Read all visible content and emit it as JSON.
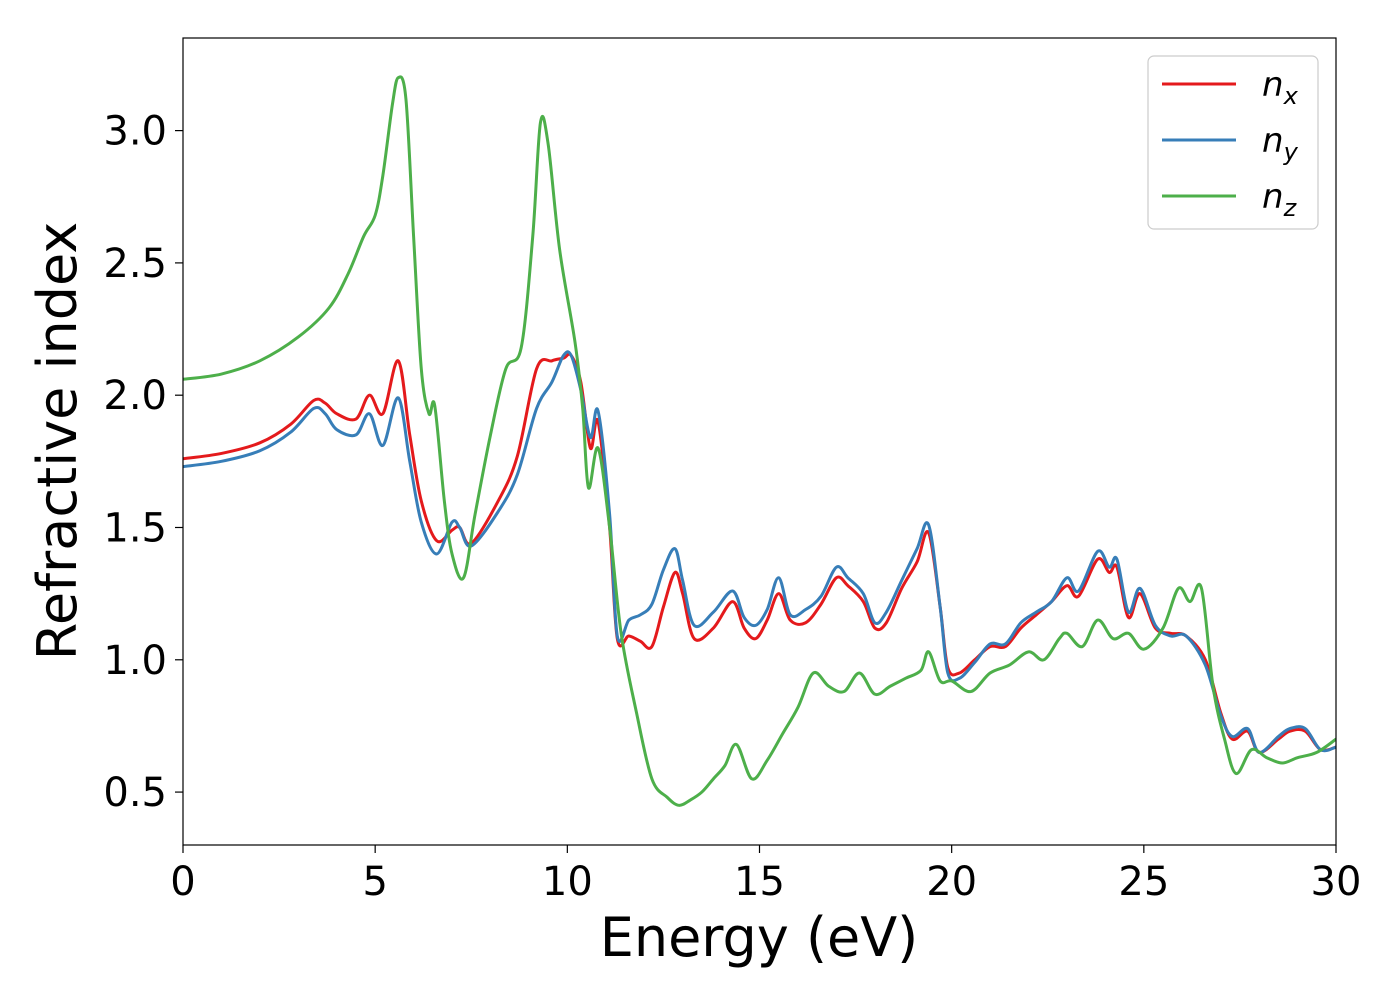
{
  "chart_data": {
    "type": "line",
    "title": "",
    "xlabel": "Energy (eV)",
    "ylabel": "Refractive index",
    "xlim": [
      0,
      30
    ],
    "ylim": [
      0.3,
      3.35
    ],
    "xticks": [
      0,
      5,
      10,
      15,
      20,
      25,
      30
    ],
    "xtick_labels": [
      "0",
      "5",
      "10",
      "15",
      "20",
      "25",
      "30"
    ],
    "yticks": [
      0.5,
      1.0,
      1.5,
      2.0,
      2.5,
      3.0
    ],
    "ytick_labels": [
      "0.5",
      "1.0",
      "1.5",
      "2.0",
      "2.5",
      "3.0"
    ],
    "grid": false,
    "legend_position": "top-right",
    "series": [
      {
        "name": "n_x",
        "label_main": "n",
        "label_sub": "x",
        "color": "#e41a1c",
        "x": [
          0,
          1,
          2,
          2.8,
          3.4,
          3.7,
          4.0,
          4.5,
          4.85,
          5.2,
          5.6,
          5.9,
          6.2,
          6.6,
          7.0,
          7.2,
          7.5,
          8.2,
          8.7,
          9.2,
          9.6,
          9.9,
          10.1,
          10.35,
          10.6,
          10.8,
          11.1,
          11.3,
          11.6,
          11.9,
          12.2,
          12.5,
          12.8,
          13.0,
          13.3,
          13.8,
          14.3,
          14.6,
          14.9,
          15.2,
          15.5,
          15.8,
          16.2,
          16.6,
          17.0,
          17.3,
          17.7,
          18.0,
          18.3,
          18.7,
          19.1,
          19.4,
          19.7,
          19.9,
          20.2,
          20.6,
          21.0,
          21.4,
          21.8,
          22.2,
          22.6,
          23.0,
          23.3,
          23.8,
          24.1,
          24.3,
          24.6,
          24.9,
          25.3,
          25.7,
          26.1,
          26.6,
          27.0,
          27.3,
          27.7,
          28.0,
          28.5,
          28.8,
          29.2,
          29.6,
          30
        ],
        "values": [
          1.76,
          1.78,
          1.82,
          1.89,
          1.98,
          1.97,
          1.93,
          1.91,
          2.0,
          1.93,
          2.13,
          1.85,
          1.6,
          1.45,
          1.49,
          1.5,
          1.44,
          1.6,
          1.77,
          2.1,
          2.13,
          2.14,
          2.15,
          2.05,
          1.8,
          1.9,
          1.5,
          1.08,
          1.09,
          1.07,
          1.05,
          1.2,
          1.33,
          1.25,
          1.08,
          1.12,
          1.22,
          1.12,
          1.08,
          1.15,
          1.25,
          1.15,
          1.14,
          1.21,
          1.31,
          1.28,
          1.22,
          1.12,
          1.14,
          1.27,
          1.37,
          1.48,
          1.2,
          0.97,
          0.95,
          1.0,
          1.05,
          1.05,
          1.12,
          1.17,
          1.22,
          1.28,
          1.24,
          1.38,
          1.33,
          1.35,
          1.16,
          1.25,
          1.12,
          1.1,
          1.09,
          1.0,
          0.8,
          0.7,
          0.73,
          0.65,
          0.7,
          0.73,
          0.73,
          0.66,
          0.67
        ]
      },
      {
        "name": "n_y",
        "label_main": "n",
        "label_sub": "y",
        "color": "#377eb8",
        "x": [
          0,
          1,
          2,
          2.8,
          3.4,
          3.7,
          4.0,
          4.5,
          4.85,
          5.2,
          5.6,
          5.9,
          6.2,
          6.6,
          7.0,
          7.2,
          7.5,
          8.2,
          8.7,
          9.2,
          9.6,
          9.9,
          10.1,
          10.35,
          10.6,
          10.8,
          11.1,
          11.3,
          11.6,
          11.9,
          12.2,
          12.5,
          12.8,
          13.0,
          13.3,
          13.8,
          14.3,
          14.6,
          14.9,
          15.2,
          15.5,
          15.8,
          16.2,
          16.6,
          17.0,
          17.3,
          17.7,
          18.0,
          18.3,
          18.7,
          19.1,
          19.4,
          19.7,
          19.9,
          20.2,
          20.6,
          21.0,
          21.4,
          21.8,
          22.2,
          22.6,
          23.0,
          23.3,
          23.8,
          24.1,
          24.3,
          24.6,
          24.9,
          25.3,
          25.7,
          26.1,
          26.6,
          27.0,
          27.3,
          27.7,
          28.0,
          28.5,
          28.8,
          29.2,
          29.6,
          30
        ],
        "values": [
          1.73,
          1.75,
          1.79,
          1.86,
          1.95,
          1.93,
          1.87,
          1.85,
          1.93,
          1.81,
          1.99,
          1.75,
          1.52,
          1.4,
          1.52,
          1.5,
          1.43,
          1.56,
          1.7,
          1.95,
          2.05,
          2.15,
          2.15,
          2.02,
          1.84,
          1.94,
          1.55,
          1.09,
          1.15,
          1.17,
          1.21,
          1.34,
          1.42,
          1.3,
          1.13,
          1.18,
          1.26,
          1.16,
          1.13,
          1.19,
          1.31,
          1.17,
          1.19,
          1.24,
          1.35,
          1.31,
          1.25,
          1.14,
          1.18,
          1.3,
          1.42,
          1.51,
          1.2,
          0.95,
          0.93,
          0.99,
          1.06,
          1.06,
          1.14,
          1.18,
          1.22,
          1.31,
          1.26,
          1.41,
          1.35,
          1.38,
          1.18,
          1.27,
          1.13,
          1.09,
          1.09,
          0.98,
          0.79,
          0.71,
          0.74,
          0.65,
          0.71,
          0.74,
          0.74,
          0.66,
          0.67
        ]
      },
      {
        "name": "n_z",
        "label_main": "n",
        "label_sub": "z",
        "color": "#4daf4a",
        "x": [
          0,
          1,
          2,
          3.0,
          3.8,
          4.3,
          4.7,
          5.0,
          5.2,
          5.45,
          5.6,
          5.8,
          6.0,
          6.2,
          6.4,
          6.55,
          6.8,
          7.0,
          7.3,
          7.6,
          8.0,
          8.4,
          8.8,
          9.1,
          9.3,
          9.5,
          9.8,
          10.2,
          10.4,
          10.55,
          10.8,
          11.1,
          11.4,
          11.8,
          12.2,
          12.6,
          12.9,
          13.2,
          13.5,
          13.8,
          14.1,
          14.4,
          14.8,
          15.2,
          15.6,
          16.0,
          16.4,
          16.8,
          17.2,
          17.6,
          18.0,
          18.4,
          18.8,
          19.2,
          19.4,
          19.7,
          20.0,
          20.5,
          21.0,
          21.5,
          22.0,
          22.4,
          22.8,
          23.0,
          23.4,
          23.8,
          24.2,
          24.6,
          25.0,
          25.5,
          25.9,
          26.2,
          26.5,
          26.8,
          27.1,
          27.4,
          27.8,
          28.2,
          28.6,
          29.0,
          29.5,
          30
        ],
        "values": [
          2.06,
          2.08,
          2.13,
          2.22,
          2.33,
          2.46,
          2.6,
          2.68,
          2.83,
          3.1,
          3.2,
          3.12,
          2.6,
          2.1,
          1.93,
          1.96,
          1.6,
          1.4,
          1.31,
          1.55,
          1.85,
          2.1,
          2.18,
          2.6,
          3.03,
          2.95,
          2.55,
          2.2,
          1.95,
          1.65,
          1.8,
          1.5,
          1.1,
          0.8,
          0.55,
          0.48,
          0.45,
          0.47,
          0.5,
          0.55,
          0.6,
          0.68,
          0.55,
          0.62,
          0.72,
          0.82,
          0.95,
          0.9,
          0.88,
          0.95,
          0.87,
          0.9,
          0.93,
          0.96,
          1.03,
          0.92,
          0.92,
          0.88,
          0.95,
          0.98,
          1.03,
          1.0,
          1.08,
          1.1,
          1.05,
          1.15,
          1.08,
          1.1,
          1.04,
          1.12,
          1.27,
          1.22,
          1.27,
          0.9,
          0.7,
          0.57,
          0.66,
          0.63,
          0.61,
          0.63,
          0.65,
          0.7
        ]
      }
    ]
  }
}
